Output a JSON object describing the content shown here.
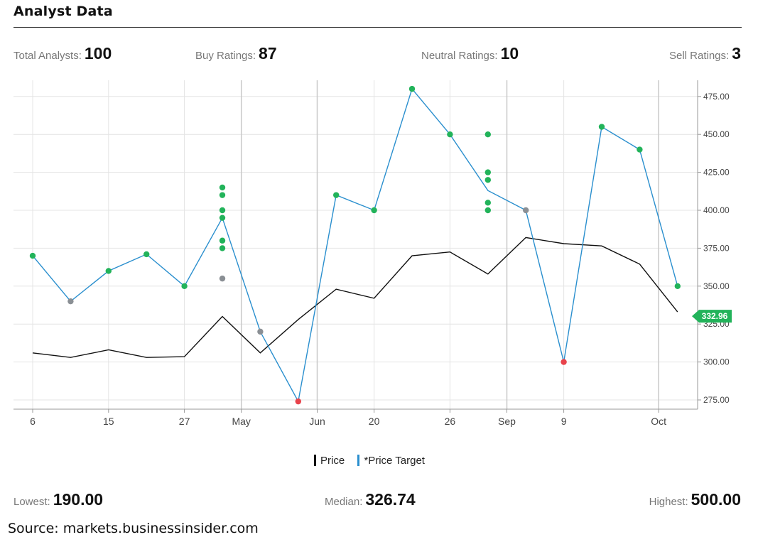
{
  "header": {
    "title": "Analyst Data"
  },
  "stats": {
    "total_label": "Total Analysts:",
    "total_value": "100",
    "buy_label": "Buy Ratings:",
    "buy_value": "87",
    "neutral_label": "Neutral Ratings:",
    "neutral_value": "10",
    "sell_label": "Sell Ratings:",
    "sell_value": "3"
  },
  "targets_summary": {
    "lowest_label": "Lowest:",
    "lowest_value": "190.00",
    "median_label": "Median:",
    "median_value": "326.74",
    "highest_label": "Highest:",
    "highest_value": "500.00"
  },
  "legend": {
    "price_label": "Price",
    "target_label": "*Price Target"
  },
  "colors": {
    "price": "#111111",
    "target": "#2a8fce",
    "buy": "#22b35a",
    "hold": "#8a8f94",
    "sell": "#e8434b",
    "grid": "#e4e4e4",
    "month_grid": "#c9c9c9"
  },
  "source": "Source: markets.businessinsider.com",
  "chart_data": {
    "type": "line",
    "x_tick_labels": [
      "6",
      "15",
      "27",
      "May",
      "Jun",
      "20",
      "26",
      "Sep",
      "9",
      "Oct"
    ],
    "x_tick_positions": [
      0,
      2,
      4,
      5.5,
      7.5,
      9,
      11,
      12.5,
      14,
      16.5
    ],
    "month_boundaries": [
      5.5,
      7.5,
      12.5,
      16.5
    ],
    "y_ticks": [
      275,
      300,
      325,
      350,
      375,
      400,
      425,
      450,
      475
    ],
    "ylim": [
      270,
      480
    ],
    "last_price_label": "332.96",
    "series": [
      {
        "name": "Price",
        "x": [
          0,
          1,
          2,
          3,
          4,
          5,
          6,
          7,
          8,
          9,
          10,
          11,
          12,
          13,
          14,
          15,
          16,
          17
        ],
        "values": [
          306,
          303,
          308,
          303,
          303.5,
          330,
          306,
          328,
          348,
          342,
          370,
          372.5,
          358,
          382,
          378,
          376.5,
          364.5,
          333
        ]
      },
      {
        "name": "*Price Target",
        "x": [
          0,
          1,
          2,
          3,
          4,
          5,
          6,
          7,
          8,
          9,
          10,
          11,
          12,
          13,
          14,
          15,
          16,
          17
        ],
        "values": [
          370,
          340,
          360,
          371,
          350,
          395,
          320,
          274,
          410,
          400,
          480,
          450,
          413,
          400,
          300,
          455,
          440,
          350
        ]
      }
    ],
    "ratings": [
      {
        "x": 0,
        "y": 370,
        "rating": "buy"
      },
      {
        "x": 1,
        "y": 340,
        "rating": "hold"
      },
      {
        "x": 2,
        "y": 360,
        "rating": "buy"
      },
      {
        "x": 3,
        "y": 371,
        "rating": "buy"
      },
      {
        "x": 4,
        "y": 350,
        "rating": "buy"
      },
      {
        "x": 5,
        "y": 415,
        "rating": "buy"
      },
      {
        "x": 5,
        "y": 410,
        "rating": "buy"
      },
      {
        "x": 5,
        "y": 400,
        "rating": "buy"
      },
      {
        "x": 5,
        "y": 395,
        "rating": "buy"
      },
      {
        "x": 5,
        "y": 380,
        "rating": "buy"
      },
      {
        "x": 5,
        "y": 375,
        "rating": "buy"
      },
      {
        "x": 5,
        "y": 355,
        "rating": "hold"
      },
      {
        "x": 6,
        "y": 320,
        "rating": "hold"
      },
      {
        "x": 7,
        "y": 274,
        "rating": "sell"
      },
      {
        "x": 8,
        "y": 410,
        "rating": "buy"
      },
      {
        "x": 9,
        "y": 400,
        "rating": "buy"
      },
      {
        "x": 10,
        "y": 480,
        "rating": "buy"
      },
      {
        "x": 11,
        "y": 450,
        "rating": "buy"
      },
      {
        "x": 12,
        "y": 450,
        "rating": "buy"
      },
      {
        "x": 12,
        "y": 425,
        "rating": "buy"
      },
      {
        "x": 12,
        "y": 420,
        "rating": "buy"
      },
      {
        "x": 12,
        "y": 405,
        "rating": "buy"
      },
      {
        "x": 12,
        "y": 400,
        "rating": "buy"
      },
      {
        "x": 13,
        "y": 400,
        "rating": "hold"
      },
      {
        "x": 14,
        "y": 300,
        "rating": "sell"
      },
      {
        "x": 15,
        "y": 455,
        "rating": "buy"
      },
      {
        "x": 16,
        "y": 440,
        "rating": "buy"
      },
      {
        "x": 17,
        "y": 350,
        "rating": "buy"
      }
    ]
  }
}
